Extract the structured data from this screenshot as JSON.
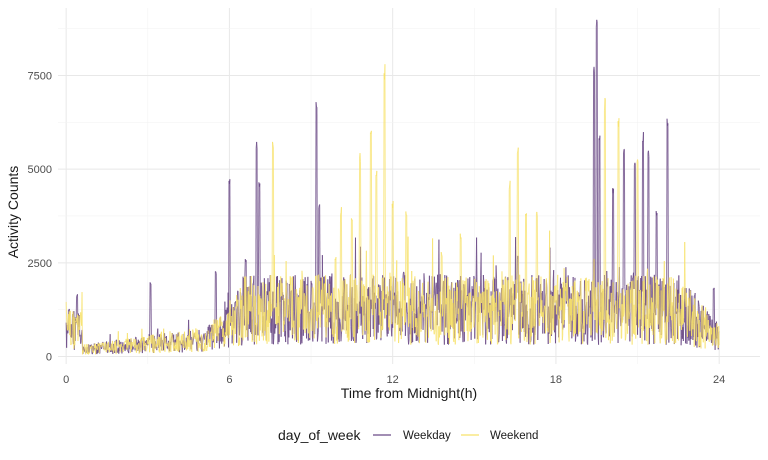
{
  "chart_data": {
    "type": "line",
    "title": "",
    "xlabel": "Time from Midnight(h)",
    "ylabel": "Activity Counts",
    "x_ticks": [
      0,
      6,
      12,
      18,
      24
    ],
    "y_ticks": [
      0,
      2500,
      5000,
      7500
    ],
    "xlim": [
      -0.3,
      25.5
    ],
    "ylim": [
      -200,
      9300
    ],
    "grid": true,
    "legend": {
      "title": "day_of_week",
      "placement": "bottom",
      "entries": [
        {
          "name": "Weekday",
          "color": "#6a4a86"
        },
        {
          "name": "Weekend",
          "color": "#f7e26b"
        }
      ]
    },
    "series": [
      {
        "name": "Weekday",
        "color": "#6a4a86",
        "peaks": [
          {
            "x": 0.1,
            "y": 1300
          },
          {
            "x": 0.4,
            "y": 1700
          },
          {
            "x": 3.1,
            "y": 2000
          },
          {
            "x": 5.5,
            "y": 2300
          },
          {
            "x": 6.0,
            "y": 4900
          },
          {
            "x": 6.6,
            "y": 2600
          },
          {
            "x": 7.0,
            "y": 5800
          },
          {
            "x": 7.1,
            "y": 4700
          },
          {
            "x": 9.2,
            "y": 7000
          },
          {
            "x": 9.3,
            "y": 4100
          },
          {
            "x": 12.4,
            "y": 2300
          },
          {
            "x": 16.6,
            "y": 2700
          },
          {
            "x": 19.4,
            "y": 7800
          },
          {
            "x": 19.5,
            "y": 9000
          },
          {
            "x": 19.6,
            "y": 5900
          },
          {
            "x": 20.1,
            "y": 4600
          },
          {
            "x": 20.5,
            "y": 5600
          },
          {
            "x": 20.9,
            "y": 5300
          },
          {
            "x": 21.2,
            "y": 6000
          },
          {
            "x": 21.4,
            "y": 5500
          },
          {
            "x": 21.7,
            "y": 3900
          },
          {
            "x": 22.1,
            "y": 6500
          },
          {
            "x": 23.1,
            "y": 1700
          },
          {
            "x": 23.8,
            "y": 1900
          }
        ]
      },
      {
        "name": "Weekend",
        "color": "#f7e26b",
        "peaks": [
          {
            "x": 7.6,
            "y": 5800
          },
          {
            "x": 9.9,
            "y": 2700
          },
          {
            "x": 10.1,
            "y": 4000
          },
          {
            "x": 10.5,
            "y": 3800
          },
          {
            "x": 10.8,
            "y": 5500
          },
          {
            "x": 11.2,
            "y": 6200
          },
          {
            "x": 11.4,
            "y": 5100
          },
          {
            "x": 11.7,
            "y": 7850
          },
          {
            "x": 12.0,
            "y": 4200
          },
          {
            "x": 12.5,
            "y": 3900
          },
          {
            "x": 13.8,
            "y": 2800
          },
          {
            "x": 14.5,
            "y": 3300
          },
          {
            "x": 16.3,
            "y": 4700
          },
          {
            "x": 16.6,
            "y": 5700
          },
          {
            "x": 16.9,
            "y": 3900
          },
          {
            "x": 17.3,
            "y": 3900
          },
          {
            "x": 19.8,
            "y": 6900
          },
          {
            "x": 20.3,
            "y": 6500
          },
          {
            "x": 21.0,
            "y": 5400
          }
        ]
      }
    ]
  }
}
